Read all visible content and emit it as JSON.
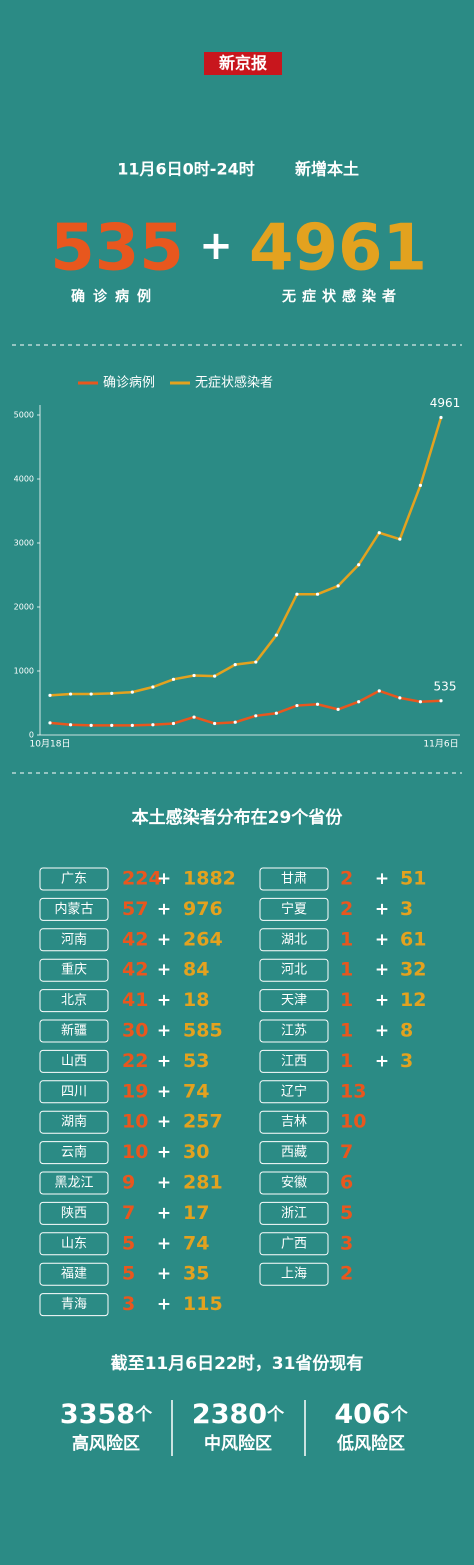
{
  "logo": "新京报",
  "header": {
    "date": "11月6日0时-24时",
    "label": "新增本土"
  },
  "headline": {
    "confirmed": 535,
    "confirmed_label": "确诊病例",
    "plus": "+",
    "asymptomatic": 4961,
    "asymptomatic_label": "无症状感染者"
  },
  "chart_data": {
    "type": "line",
    "categories": [
      "10月18日",
      null,
      null,
      null,
      null,
      null,
      null,
      null,
      null,
      null,
      null,
      null,
      null,
      null,
      null,
      null,
      null,
      null,
      null,
      "11月6日"
    ],
    "series": [
      {
        "name": "确诊病例",
        "color": "#e8571e",
        "values": [
          190,
          160,
          150,
          150,
          150,
          160,
          180,
          280,
          180,
          200,
          300,
          340,
          460,
          480,
          400,
          520,
          690,
          580,
          520,
          535
        ]
      },
      {
        "name": "无症状感染者",
        "color": "#e3a21f",
        "values": [
          620,
          640,
          640,
          650,
          670,
          750,
          870,
          930,
          920,
          1100,
          1140,
          1560,
          2200,
          2200,
          2330,
          2660,
          3160,
          3060,
          3900,
          4961
        ]
      }
    ],
    "ylim": [
      0,
      5000
    ],
    "yticks": [
      0,
      1000,
      2000,
      3000,
      4000,
      5000
    ]
  },
  "distribution": {
    "title": "本土感染者分布在29个省份",
    "columns": [
      [
        {
          "name": "广东",
          "confirmed": 224,
          "asymptomatic": 1882
        },
        {
          "name": "内蒙古",
          "confirmed": 57,
          "asymptomatic": 976
        },
        {
          "name": "河南",
          "confirmed": 42,
          "asymptomatic": 264
        },
        {
          "name": "重庆",
          "confirmed": 42,
          "asymptomatic": 84
        },
        {
          "name": "北京",
          "confirmed": 41,
          "asymptomatic": 18
        },
        {
          "name": "新疆",
          "confirmed": 30,
          "asymptomatic": 585
        },
        {
          "name": "山西",
          "confirmed": 22,
          "asymptomatic": 53
        },
        {
          "name": "四川",
          "confirmed": 19,
          "asymptomatic": 74
        },
        {
          "name": "湖南",
          "confirmed": 10,
          "asymptomatic": 257
        },
        {
          "name": "云南",
          "confirmed": 10,
          "asymptomatic": 30
        },
        {
          "name": "黑龙江",
          "confirmed": 9,
          "asymptomatic": 281
        },
        {
          "name": "陕西",
          "confirmed": 7,
          "asymptomatic": 17
        },
        {
          "name": "山东",
          "confirmed": 5,
          "asymptomatic": 74
        },
        {
          "name": "福建",
          "confirmed": 5,
          "asymptomatic": 35
        },
        {
          "name": "青海",
          "confirmed": 3,
          "asymptomatic": 115
        }
      ],
      [
        {
          "name": "甘肃",
          "confirmed": 2,
          "asymptomatic": 51
        },
        {
          "name": "宁夏",
          "confirmed": 2,
          "asymptomatic": 3
        },
        {
          "name": "湖北",
          "confirmed": 1,
          "asymptomatic": 61
        },
        {
          "name": "河北",
          "confirmed": 1,
          "asymptomatic": 32
        },
        {
          "name": "天津",
          "confirmed": 1,
          "asymptomatic": 12
        },
        {
          "name": "江苏",
          "confirmed": 1,
          "asymptomatic": 8
        },
        {
          "name": "江西",
          "confirmed": 1,
          "asymptomatic": 3
        },
        {
          "name": "辽宁",
          "confirmed": 13
        },
        {
          "name": "吉林",
          "confirmed": 10
        },
        {
          "name": "西藏",
          "confirmed": 7
        },
        {
          "name": "安徽",
          "confirmed": 6
        },
        {
          "name": "浙江",
          "confirmed": 5
        },
        {
          "name": "广西",
          "confirmed": 3
        },
        {
          "name": "上海",
          "confirmed": 2
        }
      ]
    ]
  },
  "footer": {
    "title": "截至11月6日22时，31省份现有",
    "unit": "个",
    "areas": [
      {
        "count": 3358,
        "label": "高风险区"
      },
      {
        "count": 2380,
        "label": "中风险区"
      },
      {
        "count": 406,
        "label": "低风险区"
      }
    ]
  }
}
